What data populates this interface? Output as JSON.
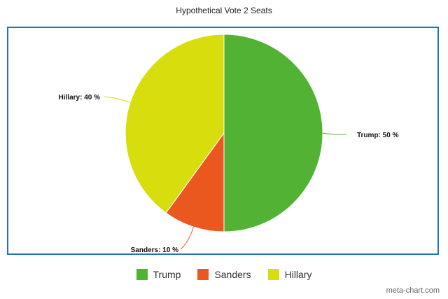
{
  "chart_data": {
    "type": "pie",
    "title": "Hypothetical Vote 2 Seats",
    "categories": [
      "Trump",
      "Sanders",
      "Hillary"
    ],
    "values": [
      50,
      10,
      40
    ],
    "labels": [
      "Trump: 50 %",
      "Sanders: 10 %",
      "Hillary: 40 %"
    ],
    "colors": [
      "#52b233",
      "#ea571f",
      "#d8de0e"
    ],
    "legend": "bottom",
    "start_angle_deg": 0,
    "direction": "clockwise"
  },
  "credit": "meta-chart.com"
}
